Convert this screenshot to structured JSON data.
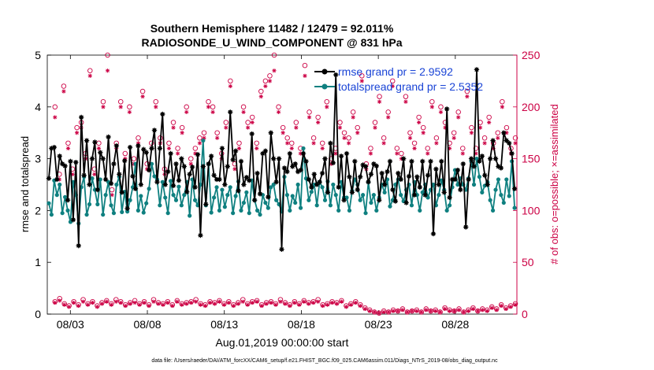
{
  "chart_data": {
    "type": "line",
    "title_line1": "Southern Hemisphere 11482 / 12479 = 92.011%",
    "title_line2": "RADIOSONDE_U_WIND_COMPONENT @ 831 hPa",
    "ylabel_left": "rmse and totalspread",
    "ylabel_right": "# of obs: o=possible; ×=assimilated",
    "xlabel": "Aug.01,2019 00:00:00 start",
    "footer": "data file: /Users/raeder/DAI/ATM_forcXX/CAM6_setup/f.e21.FHIST_BGC.f09_025.CAM6assim.011/Diags_NTrS_2019-08/obs_diag_output.nc",
    "x_range": [
      1.5,
      32
    ],
    "ylim_left": [
      0,
      5
    ],
    "ylim_right": [
      0,
      250
    ],
    "x_ticks": [
      3,
      8,
      13,
      18,
      23,
      28
    ],
    "x_tick_labels": [
      "08/03",
      "08/08",
      "08/13",
      "08/18",
      "08/23",
      "08/28"
    ],
    "y_ticks_left": [
      0,
      1,
      2,
      3,
      4,
      5
    ],
    "y_ticks_right": [
      0,
      50,
      100,
      150,
      200,
      250
    ],
    "colors": {
      "rmse": "#000000",
      "spread": "#0f8080",
      "obs": "#cc0044",
      "legend_text": "#1a44d6"
    },
    "legend": [
      {
        "label": "rmse grand pr = 2.9592"
      },
      {
        "label": "totalspread grand pr = 2.5352"
      }
    ],
    "series": [
      {
        "name": "rmse",
        "values": [
          2.62,
          3.2,
          3.22,
          2.6,
          3.05,
          2.9,
          2.86,
          2.2,
          2.95,
          1.82,
          2.93,
          1.32,
          3.8,
          2.68,
          3.35,
          2.5,
          3.0,
          3.32,
          2.4,
          3.12,
          3.0,
          2.6,
          3.42,
          2.52,
          2.9,
          3.25,
          2.7,
          2.35,
          2.96,
          2.04,
          3.22,
          2.66,
          2.42,
          3.25,
          2.5,
          3.18,
          3.12,
          2.78,
          3.2,
          3.55,
          2.55,
          3.2,
          3.86,
          2.5,
          2.75,
          3.1,
          2.48,
          2.9,
          2.58,
          3.0,
          2.85,
          2.36,
          2.7,
          2.84,
          2.45,
          3.08,
          1.52,
          2.85,
          2.12,
          2.9,
          3.05,
          2.68,
          2.6,
          2.6,
          3.2,
          2.5,
          2.85,
          3.9,
          2.98,
          3.15,
          2.38,
          2.95,
          2.5,
          2.64,
          2.58,
          3.48,
          2.2,
          2.72,
          2.32,
          3.1,
          3.15,
          2.26,
          3.5,
          3.0,
          2.55,
          3.0,
          1.25,
          2.82,
          2.75,
          3.1,
          2.85,
          2.9,
          2.75,
          2.78,
          3.1,
          2.95,
          2.6,
          2.45,
          2.7,
          2.5,
          2.55,
          2.72,
          3.0,
          2.35,
          3.3,
          2.92,
          4.62,
          2.45,
          3.05,
          2.2,
          3.1,
          2.65,
          2.35,
          2.95,
          2.4,
          2.65,
          2.88,
          2.85,
          2.55,
          2.7,
          2.9,
          2.86,
          2.2,
          2.72,
          2.5,
          2.75,
          2.95,
          2.4,
          2.18,
          2.72,
          2.6,
          3.0,
          2.15,
          2.66,
          2.95,
          2.3,
          2.65,
          2.45,
          2.95,
          2.3,
          2.68,
          2.95,
          1.55,
          2.8,
          2.5,
          2.95,
          2.35,
          3.96,
          2.25,
          2.6,
          2.6,
          2.78,
          2.4,
          2.9,
          1.68,
          2.6,
          3.0,
          2.85,
          4.72,
          2.95,
          3.05,
          2.68,
          2.5,
          3.0,
          3.35,
          3.0,
          2.85,
          2.82,
          3.5,
          3.35,
          3.3,
          3.1,
          2.42
        ]
      },
      {
        "name": "totalspread",
        "values": [
          2.14,
          1.92,
          2.58,
          2.3,
          2.5,
          1.95,
          2.26,
          2.0,
          1.78,
          2.55,
          2.3,
          1.75,
          2.45,
          2.65,
          1.92,
          2.12,
          2.62,
          2.4,
          2.12,
          2.6,
          1.92,
          2.3,
          2.55,
          2.1,
          1.95,
          2.5,
          2.65,
          1.97,
          2.36,
          1.98,
          2.2,
          2.45,
          2.9,
          2.0,
          2.28,
          1.96,
          2.14,
          2.42,
          2.9,
          2.66,
          2.6,
          2.1,
          2.55,
          2.25,
          1.95,
          2.57,
          2.3,
          2.2,
          2.46,
          2.1,
          2.3,
          2.55,
          1.9,
          2.6,
          2.2,
          2.1,
          2.5,
          3.35,
          2.1,
          2.9,
          1.96,
          2.25,
          2.45,
          2.0,
          2.4,
          2.07,
          2.3,
          2.45,
          1.95,
          2.28,
          2.56,
          2.0,
          2.15,
          2.35,
          1.95,
          2.58,
          2.2,
          2.0,
          1.92,
          2.3,
          2.15,
          2.05,
          2.45,
          2.5,
          2.2,
          2.12,
          1.98,
          2.65,
          2.3,
          2.0,
          2.28,
          2.15,
          2.5,
          2.05,
          3.2,
          2.62,
          2.2,
          2.36,
          2.5,
          2.1,
          2.55,
          2.45,
          2.2,
          2.56,
          2.1,
          2.5,
          2.3,
          2.0,
          2.55,
          2.25,
          2.25,
          2.0,
          2.38,
          2.6,
          2.5,
          2.2,
          2.3,
          1.95,
          2.55,
          2.15,
          2.3,
          2.0,
          2.25,
          2.5,
          2.35,
          2.6,
          2.08,
          2.2,
          2.5,
          2.6,
          2.3,
          2.18,
          2.4,
          2.5,
          2.1,
          2.55,
          2.3,
          2.0,
          2.35,
          2.5,
          2.25,
          2.4,
          2.5,
          2.1,
          2.3,
          2.58,
          2.4,
          2.0,
          2.1,
          2.45,
          2.78,
          2.5,
          2.62,
          2.5,
          2.4,
          2.62,
          2.95,
          2.5,
          3.0,
          2.65,
          2.35,
          2.48,
          2.55,
          2.2,
          2.0,
          2.4,
          2.6,
          2.3,
          2.15,
          2.6,
          2.28,
          2.95,
          2.05
        ]
      },
      {
        "name": "obs_possible_upper",
        "values": [
          200,
          135,
          220,
          165,
          140,
          180,
          185,
          155,
          235,
          140,
          165,
          205,
          250,
          120,
          165,
          205,
          155,
          200,
          150,
          170,
          215,
          145,
          165,
          205,
          170,
          140,
          165,
          185,
          160,
          180,
          200,
          150,
          160,
          170,
          175,
          205,
          200,
          175,
          155,
          185,
          225,
          145,
          165,
          200,
          185,
          190,
          165,
          215,
          225,
          230,
          250,
          200,
          180,
          170,
          165,
          185,
          160,
          240,
          195,
          170,
          190,
          165,
          205,
          150,
          160,
          185,
          175,
          170,
          195,
          180,
          230,
          145,
          160,
          185,
          210,
          170,
          195,
          225,
          160,
          155,
          210,
          175,
          165,
          190,
          180,
          160,
          205,
          170,
          200,
          185,
          165,
          175,
          195,
          160,
          215,
          180,
          160,
          185,
          170,
          190,
          165,
          175,
          205,
          180,
          160,
          170
        ]
      },
      {
        "name": "obs_assimilated_upper",
        "values": [
          190,
          130,
          215,
          160,
          135,
          175,
          180,
          150,
          230,
          135,
          160,
          200,
          235,
          115,
          160,
          200,
          150,
          195,
          145,
          165,
          210,
          140,
          160,
          200,
          165,
          135,
          160,
          180,
          155,
          175,
          195,
          145,
          155,
          165,
          170,
          200,
          195,
          170,
          150,
          180,
          220,
          140,
          160,
          195,
          180,
          185,
          160,
          210,
          220,
          225,
          235,
          195,
          175,
          165,
          160,
          180,
          155,
          230,
          190,
          165,
          185,
          160,
          200,
          145,
          155,
          180,
          170,
          165,
          190,
          175,
          225,
          140,
          155,
          180,
          205,
          165,
          190,
          220,
          155,
          150,
          205,
          170,
          160,
          185,
          175,
          155,
          200,
          165,
          195,
          180,
          160,
          170,
          190,
          155,
          210,
          175,
          155,
          180,
          165,
          185,
          160,
          170,
          200,
          175,
          155,
          165
        ]
      },
      {
        "name": "obs_possible_lower",
        "values": [
          12,
          15,
          10,
          8,
          12,
          9,
          14,
          10,
          12,
          8,
          11,
          13,
          10,
          14,
          12,
          9,
          11,
          13,
          10,
          12,
          9,
          14,
          11,
          10,
          12,
          9,
          13,
          10,
          11,
          12,
          14,
          10,
          9,
          12,
          11,
          13,
          10,
          12,
          9,
          11,
          14,
          10,
          12,
          13,
          9,
          11,
          12,
          10,
          14,
          11,
          9,
          12,
          10,
          13,
          11,
          12,
          14,
          9,
          10,
          12,
          11,
          13,
          8,
          10,
          12,
          9,
          6,
          4,
          2,
          1,
          3,
          2,
          4,
          3,
          5,
          2,
          3,
          4,
          2,
          5,
          3,
          4,
          2,
          6,
          4,
          3,
          5,
          2,
          4,
          6,
          3,
          5,
          4,
          7,
          5,
          9,
          6,
          8,
          10
        ]
      },
      {
        "name": "obs_assimilated_lower",
        "values": [
          11,
          13,
          9,
          7,
          11,
          8,
          12,
          9,
          11,
          7,
          10,
          12,
          9,
          12,
          11,
          8,
          10,
          11,
          9,
          11,
          8,
          12,
          10,
          9,
          11,
          8,
          12,
          9,
          10,
          11,
          12,
          9,
          8,
          11,
          10,
          12,
          9,
          11,
          8,
          10,
          12,
          9,
          11,
          12,
          8,
          10,
          11,
          9,
          12,
          10,
          8,
          11,
          9,
          12,
          10,
          11,
          12,
          8,
          9,
          11,
          10,
          12,
          7,
          9,
          11,
          8,
          5,
          3,
          2,
          1,
          2,
          2,
          3,
          3,
          4,
          2,
          3,
          3,
          2,
          4,
          3,
          3,
          2,
          5,
          3,
          3,
          4,
          2,
          3,
          5,
          3,
          4,
          3,
          6,
          4,
          8,
          5,
          7,
          9
        ]
      }
    ]
  }
}
